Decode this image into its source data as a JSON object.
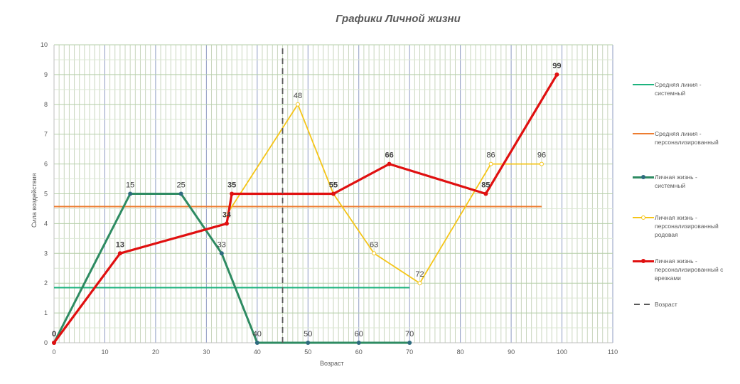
{
  "chart_data": {
    "type": "line",
    "title": "Графики  Личной жизни",
    "xlabel": "Возраст",
    "ylabel": "Сила воздействия",
    "xlim": [
      0,
      110
    ],
    "ylim": [
      0,
      10
    ],
    "x_ticks": [
      "0",
      "10",
      "20",
      "30",
      "40",
      "50",
      "60",
      "70",
      "80",
      "90",
      "100",
      "110"
    ],
    "y_ticks": [
      "0",
      "1",
      "2",
      "3",
      "4",
      "5",
      "6",
      "7",
      "8",
      "9",
      "10"
    ],
    "grid": true,
    "legend_position": "right",
    "series": [
      {
        "name": "Средняя линия - системный",
        "color": "#1DB37E",
        "style": "solid",
        "x": [
          0,
          70
        ],
        "y": [
          1.85,
          1.85
        ]
      },
      {
        "name": "Средняя линия - персонализированный",
        "color": "#ED7D31",
        "style": "solid",
        "x": [
          0,
          96
        ],
        "y": [
          4.57,
          4.57
        ]
      },
      {
        "name": "Личная жизнь - системный",
        "color": "#2E8B62",
        "style": "solid-markers",
        "x": [
          0,
          15,
          25,
          33,
          40,
          50,
          60,
          70
        ],
        "y": [
          0,
          5,
          5,
          3,
          0,
          0,
          0,
          0
        ],
        "labels": [
          "0",
          "15",
          "25",
          "33",
          "40",
          "50",
          "60",
          "70"
        ]
      },
      {
        "name": "Личная жизнь - персонализированный родовая",
        "color": "#F5C518",
        "style": "solid-hollow-markers",
        "x": [
          34,
          48,
          55,
          63,
          72,
          86,
          96
        ],
        "y": [
          4.3,
          8,
          5,
          3,
          2,
          6,
          6
        ],
        "labels": [
          "34",
          "48",
          "55",
          "63",
          "72",
          "86",
          "96"
        ]
      },
      {
        "name": "Личная жизнь - персонализированный с врезками",
        "color": "#E01010",
        "style": "solid-markers",
        "x": [
          0,
          13,
          34,
          35,
          55,
          66,
          85,
          99
        ],
        "y": [
          0,
          3,
          4,
          5,
          5,
          6,
          5,
          9
        ],
        "labels": [
          "0",
          "13",
          "34",
          "35",
          "55",
          "66",
          "85",
          "99"
        ]
      },
      {
        "name": "Возраст",
        "color": "#595959",
        "style": "dashed",
        "x": [
          45,
          45
        ],
        "y": [
          0,
          10
        ]
      }
    ]
  },
  "legend": {
    "items": [
      {
        "label_line1": "Средняя линия -",
        "label_line2": "системный",
        "label_line3": ""
      },
      {
        "label_line1": "Средняя линия -",
        "label_line2": "персонализированный",
        "label_line3": ""
      },
      {
        "label_line1": "Личная жизнь -",
        "label_line2": "системный",
        "label_line3": ""
      },
      {
        "label_line1": "Личная жизнь -",
        "label_line2": "персонализированный",
        "label_line3": "родовая"
      },
      {
        "label_line1": "Личная жизнь -",
        "label_line2": "персонализированный с",
        "label_line3": "врезками"
      },
      {
        "label_line1": "Возраст",
        "label_line2": "",
        "label_line3": ""
      }
    ]
  }
}
